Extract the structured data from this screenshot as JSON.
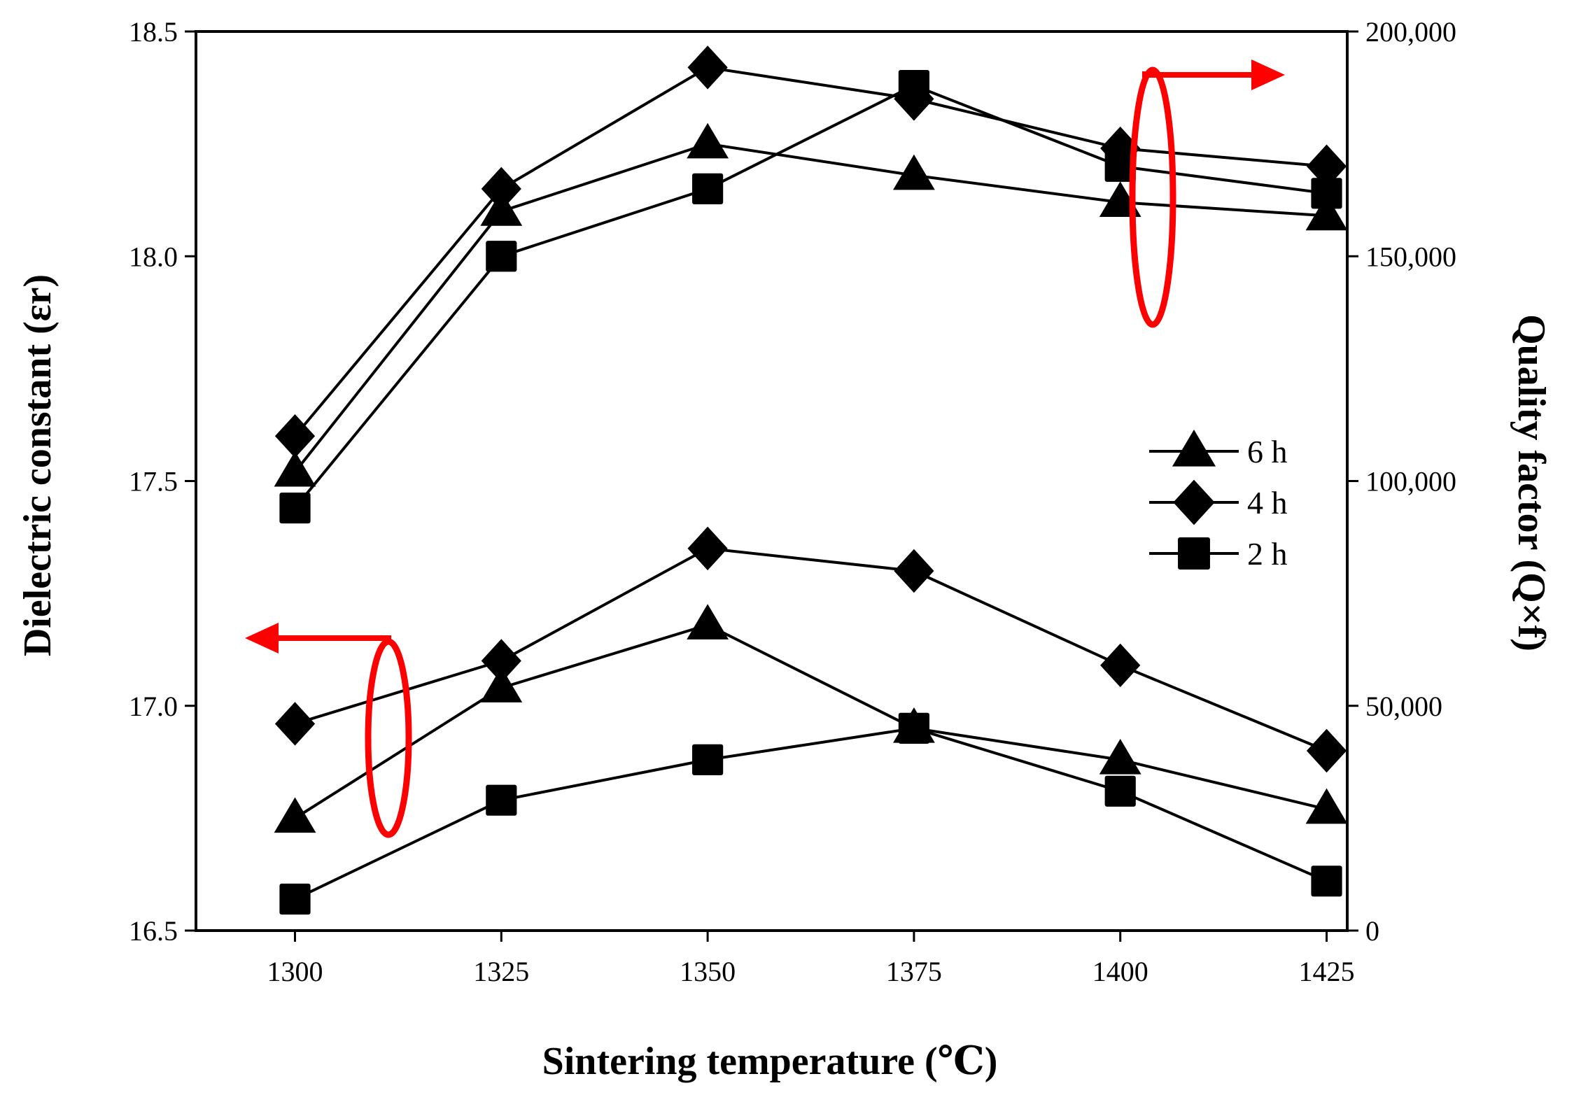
{
  "chart_data": {
    "type": "line",
    "xlabel": "Sintering temperature (℃)",
    "ylabel_left": "Dielectric constant (εr)",
    "ylabel_right": "Quality factor (Q×f)",
    "x": [
      1300,
      1325,
      1350,
      1375,
      1400,
      1425
    ],
    "x_tick_labels": [
      "1300",
      "1325",
      "1350",
      "1375",
      "1400",
      "1425"
    ],
    "xlim": [
      1288,
      1427.5
    ],
    "ylim_left": [
      16.5,
      18.5
    ],
    "y_ticks_left": [
      "16.5",
      "17.0",
      "17.5",
      "18.0",
      "18.5"
    ],
    "ylim_right": [
      0,
      200000
    ],
    "y_ticks_right": [
      "0",
      "50,000",
      "100,000",
      "150,000",
      "200,000"
    ],
    "annotation_color": "#ff0000",
    "line_color": "#000000",
    "legend": {
      "placement": "right-middle",
      "entries": [
        {
          "label": "6 h",
          "marker": "triangle"
        },
        {
          "label": "4 h",
          "marker": "diamond"
        },
        {
          "label": "2 h",
          "marker": "square"
        }
      ]
    },
    "series": [
      {
        "name": "6 h",
        "axis": "left",
        "marker": "triangle",
        "values": [
          16.75,
          17.04,
          17.18,
          16.95,
          16.88,
          16.77
        ]
      },
      {
        "name": "4 h",
        "axis": "left",
        "marker": "diamond",
        "values": [
          16.96,
          17.1,
          17.35,
          17.3,
          17.09,
          16.9
        ]
      },
      {
        "name": "2 h",
        "axis": "left",
        "marker": "square",
        "values": [
          16.57,
          16.79,
          16.88,
          16.95,
          16.81,
          16.61
        ]
      },
      {
        "name": "6 h",
        "axis": "right",
        "marker": "triangle",
        "values": [
          102000,
          160000,
          175000,
          168000,
          162000,
          159000
        ]
      },
      {
        "name": "4 h",
        "axis": "right",
        "marker": "diamond",
        "values": [
          110000,
          165000,
          192000,
          185000,
          174000,
          170000
        ]
      },
      {
        "name": "2 h",
        "axis": "right",
        "marker": "square",
        "values": [
          94000,
          150000,
          165000,
          188000,
          170000,
          164000
        ]
      }
    ]
  }
}
